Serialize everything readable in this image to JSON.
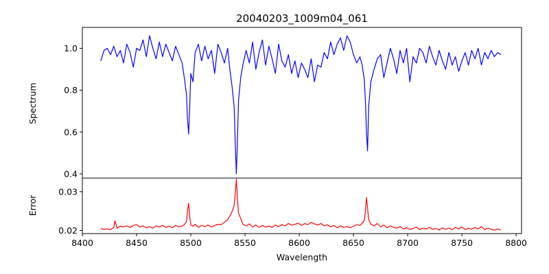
{
  "chart_data": [
    {
      "type": "line",
      "title": "20040203_1009m04_061",
      "xlabel": "",
      "ylabel": "Spectrum",
      "xlim": [
        8400,
        8805
      ],
      "ylim": [
        0.38,
        1.1
      ],
      "yticks": [
        "0.4",
        "0.6",
        "0.8",
        "1.0"
      ],
      "grid": false,
      "series": [
        {
          "color": "#0000ff",
          "x": [
            8417,
            8420,
            8423,
            8426,
            8429,
            8432,
            8435,
            8438,
            8441,
            8444,
            8447,
            8450,
            8453,
            8456,
            8459,
            8462,
            8465,
            8468,
            8471,
            8474,
            8477,
            8480,
            8483,
            8486,
            8489,
            8492,
            8494,
            8496,
            8497,
            8498,
            8499,
            8500,
            8502,
            8504,
            8507,
            8510,
            8513,
            8516,
            8519,
            8522,
            8525,
            8528,
            8531,
            8534,
            8536,
            8538,
            8540,
            8541,
            8542,
            8543,
            8544,
            8546,
            8548,
            8551,
            8554,
            8557,
            8560,
            8563,
            8566,
            8569,
            8572,
            8575,
            8578,
            8581,
            8584,
            8587,
            8590,
            8593,
            8596,
            8599,
            8602,
            8605,
            8608,
            8611,
            8614,
            8617,
            8620,
            8623,
            8626,
            8629,
            8632,
            8635,
            8638,
            8641,
            8644,
            8647,
            8650,
            8653,
            8656,
            8658,
            8660,
            8661,
            8662,
            8663,
            8664,
            8666,
            8669,
            8672,
            8675,
            8678,
            8681,
            8684,
            8687,
            8690,
            8693,
            8696,
            8699,
            8702,
            8705,
            8708,
            8711,
            8714,
            8717,
            8720,
            8723,
            8726,
            8729,
            8732,
            8735,
            8738,
            8741,
            8744,
            8747,
            8750,
            8753,
            8756,
            8759,
            8762,
            8765,
            8768,
            8771,
            8774,
            8777,
            8780,
            8783,
            8786
          ],
          "y": [
            0.94,
            0.99,
            1.0,
            0.97,
            1.01,
            0.96,
            0.99,
            0.93,
            1.02,
            0.98,
            0.91,
            1.0,
            0.99,
            1.04,
            0.96,
            1.06,
            1.0,
            0.95,
            1.03,
            0.96,
            1.02,
            0.98,
            0.94,
            1.01,
            0.97,
            0.93,
            0.86,
            0.78,
            0.66,
            0.59,
            0.72,
            0.88,
            0.84,
            0.98,
            1.02,
            0.94,
            1.01,
            0.95,
            0.99,
            0.88,
            1.02,
            0.98,
            0.93,
            1.0,
            0.9,
            0.82,
            0.72,
            0.55,
            0.4,
            0.56,
            0.75,
            0.86,
            0.92,
            0.99,
            0.93,
            1.03,
            0.9,
            0.98,
            1.04,
            0.92,
            1.01,
            0.95,
            0.88,
            1.02,
            0.94,
            0.91,
            0.97,
            0.88,
            0.94,
            0.86,
            0.93,
            0.9,
            0.86,
            0.95,
            0.84,
            0.92,
            0.91,
            0.98,
            0.95,
            1.03,
            0.97,
            1.02,
            1.05,
            0.99,
            1.06,
            1.03,
            0.97,
            0.93,
            0.96,
            0.92,
            0.85,
            0.75,
            0.6,
            0.51,
            0.72,
            0.84,
            0.9,
            0.95,
            0.97,
            0.86,
            0.93,
            1.0,
            0.95,
            0.88,
            0.99,
            0.93,
            1.0,
            0.84,
            0.96,
            0.93,
            1.0,
            0.98,
            0.93,
            1.01,
            0.96,
            0.92,
            0.99,
            0.94,
            0.9,
            0.98,
            0.92,
            0.96,
            0.89,
            0.94,
            0.98,
            0.92,
            0.99,
            0.95,
            1.0,
            0.92,
            0.98,
            0.95,
            0.99,
            0.96,
            0.98,
            0.97
          ]
        }
      ]
    },
    {
      "type": "line",
      "title": "",
      "xlabel": "Wavelength",
      "ylabel": "Error",
      "xlim": [
        8400,
        8805
      ],
      "ylim": [
        0.0192,
        0.0335
      ],
      "xticks": [
        "8400",
        "8450",
        "8500",
        "8550",
        "8600",
        "8650",
        "8700",
        "8750",
        "8800"
      ],
      "yticks": [
        "0.02",
        "0.03"
      ],
      "grid": false,
      "series": [
        {
          "color": "#ff0000",
          "x": [
            8417,
            8420,
            8423,
            8426,
            8429,
            8430,
            8432,
            8435,
            8438,
            8441,
            8444,
            8447,
            8450,
            8453,
            8456,
            8459,
            8462,
            8465,
            8468,
            8471,
            8474,
            8477,
            8480,
            8483,
            8486,
            8489,
            8492,
            8494,
            8496,
            8497,
            8498,
            8499,
            8500,
            8502,
            8504,
            8507,
            8510,
            8513,
            8516,
            8519,
            8522,
            8525,
            8528,
            8531,
            8534,
            8536,
            8538,
            8540,
            8541,
            8542,
            8543,
            8544,
            8546,
            8548,
            8551,
            8554,
            8557,
            8560,
            8563,
            8566,
            8569,
            8572,
            8575,
            8578,
            8581,
            8584,
            8587,
            8590,
            8593,
            8596,
            8599,
            8602,
            8605,
            8608,
            8611,
            8614,
            8617,
            8620,
            8623,
            8626,
            8629,
            8632,
            8635,
            8638,
            8641,
            8644,
            8647,
            8650,
            8653,
            8656,
            8658,
            8660,
            8661,
            8662,
            8663,
            8664,
            8666,
            8669,
            8672,
            8675,
            8678,
            8681,
            8684,
            8687,
            8690,
            8693,
            8696,
            8699,
            8702,
            8705,
            8708,
            8711,
            8714,
            8717,
            8720,
            8723,
            8726,
            8729,
            8732,
            8735,
            8738,
            8741,
            8744,
            8747,
            8750,
            8753,
            8756,
            8759,
            8762,
            8765,
            8768,
            8771,
            8774,
            8777,
            8780,
            8783,
            8786
          ],
          "y": [
            0.0205,
            0.0203,
            0.0204,
            0.0202,
            0.0208,
            0.0225,
            0.0206,
            0.0211,
            0.0209,
            0.0212,
            0.0208,
            0.0213,
            0.0215,
            0.0209,
            0.0212,
            0.0207,
            0.021,
            0.0206,
            0.0212,
            0.0209,
            0.0213,
            0.0208,
            0.0211,
            0.0207,
            0.0213,
            0.0209,
            0.0212,
            0.0215,
            0.0222,
            0.0252,
            0.027,
            0.0236,
            0.0214,
            0.0211,
            0.0216,
            0.0208,
            0.0213,
            0.021,
            0.0214,
            0.0209,
            0.0213,
            0.0216,
            0.0215,
            0.0221,
            0.0228,
            0.0237,
            0.0248,
            0.0265,
            0.0295,
            0.0332,
            0.0282,
            0.0245,
            0.0231,
            0.0216,
            0.0212,
            0.0217,
            0.0209,
            0.0214,
            0.0208,
            0.0213,
            0.0209,
            0.0211,
            0.0208,
            0.0214,
            0.021,
            0.0215,
            0.0212,
            0.0218,
            0.0214,
            0.0216,
            0.0219,
            0.0213,
            0.0218,
            0.0215,
            0.0221,
            0.0217,
            0.0214,
            0.0218,
            0.0212,
            0.0215,
            0.0209,
            0.0213,
            0.0207,
            0.0212,
            0.0208,
            0.021,
            0.0207,
            0.0211,
            0.0215,
            0.0213,
            0.0219,
            0.0225,
            0.0248,
            0.0285,
            0.0258,
            0.0229,
            0.0216,
            0.0212,
            0.0218,
            0.0209,
            0.0214,
            0.0207,
            0.0212,
            0.0208,
            0.0206,
            0.021,
            0.0204,
            0.0207,
            0.0203,
            0.0205,
            0.0209,
            0.0202,
            0.0206,
            0.0204,
            0.0208,
            0.0203,
            0.0205,
            0.0201,
            0.0207,
            0.0203,
            0.0206,
            0.0202,
            0.0208,
            0.0204,
            0.0209,
            0.0202,
            0.0206,
            0.0203,
            0.0208,
            0.0204,
            0.021,
            0.0202,
            0.0206,
            0.0203,
            0.0201,
            0.0204,
            0.0201
          ]
        }
      ]
    }
  ]
}
